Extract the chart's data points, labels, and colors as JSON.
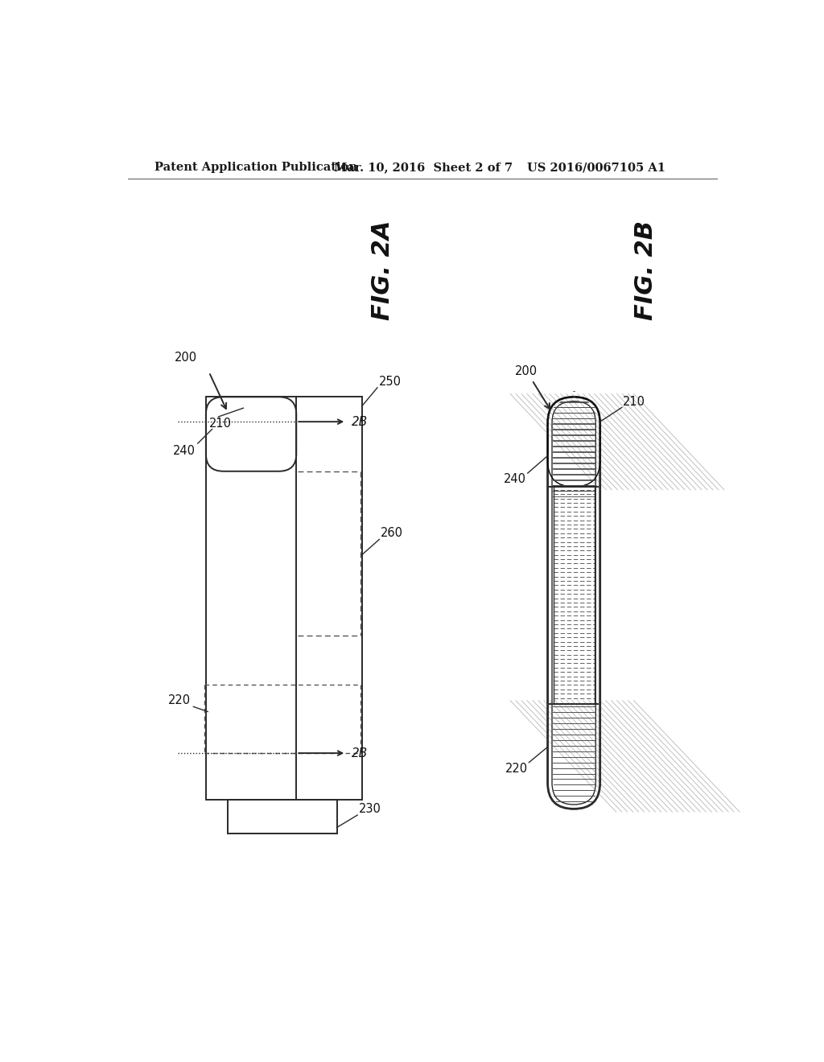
{
  "bg_color": "#ffffff",
  "header_left": "Patent Application Publication",
  "header_mid": "Mar. 10, 2016  Sheet 2 of 7",
  "header_right": "US 2016/0067105 A1",
  "fig2a_label": "FIG. 2A",
  "fig2b_label": "FIG. 2B",
  "labels": {
    "200_left": "200",
    "200_right": "200",
    "210_left": "210",
    "210_right": "210",
    "220_left": "220",
    "220_right": "220",
    "240_left": "240",
    "240_right": "240",
    "250": "250",
    "260": "260",
    "230": "230",
    "2B_top": "2B",
    "2B_bot": "2B"
  }
}
